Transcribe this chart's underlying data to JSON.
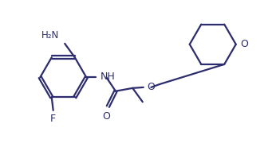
{
  "bg_color": "#ffffff",
  "line_color": "#2c2c6e",
  "line_width": 1.6,
  "font_size": 8.5,
  "figsize": [
    3.46,
    1.85
  ],
  "dpi": 100,
  "xlim": [
    0.0,
    3.5
  ],
  "ylim": [
    0.05,
    1.95
  ]
}
